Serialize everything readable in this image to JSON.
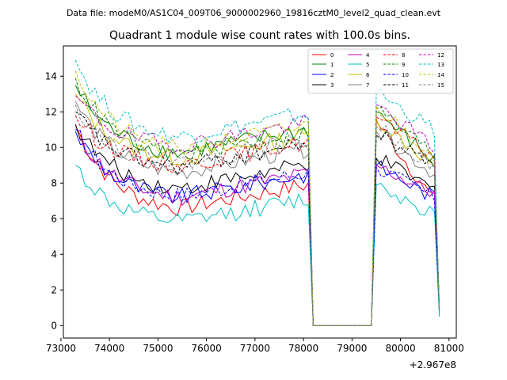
{
  "header": {
    "data_file_label": "Data file: modeM0/AS1C04_009T06_9000002960_19816cztM0_level2_quad_clean.evt"
  },
  "chart_data": {
    "type": "line",
    "title": "Quadrant 1 module wise count rates with 100.0s bins.",
    "xlabel": "",
    "ylabel": "",
    "x_offset_label": "+2.967e8",
    "xlim": [
      73050,
      81150
    ],
    "ylim": [
      -0.7,
      15.7
    ],
    "x_ticks": [
      73000,
      74000,
      75000,
      76000,
      77000,
      78000,
      79000,
      80000,
      81000
    ],
    "x_tick_labels": [
      "73000",
      "74000",
      "75000",
      "76000",
      "77000",
      "78000",
      "79000",
      "80000",
      "81000"
    ],
    "y_ticks": [
      0,
      2,
      4,
      6,
      8,
      10,
      12,
      14
    ],
    "y_tick_labels": [
      "0",
      "2",
      "4",
      "6",
      "8",
      "10",
      "12",
      "14"
    ],
    "legend_position": "top-right",
    "bin_seconds": 100,
    "segment_1": {
      "x_start": 73300,
      "x_end": 78100,
      "step": 100
    },
    "gap": {
      "x_start": 78200,
      "x_end": 79400,
      "value": 0
    },
    "segment_2": {
      "x_start": 79500,
      "x_end": 80700,
      "step": 100
    },
    "end_point": {
      "x": 80800
    },
    "series": [
      {
        "name": "0",
        "color": "#ff0000",
        "dash": "solid",
        "start": 11.2,
        "plateau": 6.6,
        "peak": 11.5,
        "s2_end": 7.0,
        "end_value": 0.9
      },
      {
        "name": "1",
        "color": "#008000",
        "dash": "solid",
        "start": 13.5,
        "plateau": 9.7,
        "peak": 12.0,
        "s2_end": 9.2,
        "end_value": 0.9
      },
      {
        "name": "2",
        "color": "#0000ff",
        "dash": "solid",
        "start": 10.9,
        "plateau": 7.2,
        "peak": 9.0,
        "s2_end": 7.2,
        "end_value": 0.8
      },
      {
        "name": "3",
        "color": "#000000",
        "dash": "solid",
        "start": 11.3,
        "plateau": 7.7,
        "peak": 9.4,
        "s2_end": 7.6,
        "end_value": 0.8
      },
      {
        "name": "4",
        "color": "#c000c0",
        "dash": "solid",
        "start": 11.0,
        "plateau": 7.2,
        "peak": 9.0,
        "s2_end": 7.4,
        "end_value": 0.8
      },
      {
        "name": "5",
        "color": "#00c0c0",
        "dash": "solid",
        "start": 9.0,
        "plateau": 5.8,
        "peak": 7.9,
        "s2_end": 6.3,
        "end_value": 0.6
      },
      {
        "name": "6",
        "color": "#c0c000",
        "dash": "solid",
        "start": 13.0,
        "plateau": 9.4,
        "peak": 11.6,
        "s2_end": 9.0,
        "end_value": 0.9
      },
      {
        "name": "7",
        "color": "#808080",
        "dash": "solid",
        "start": 12.6,
        "plateau": 8.6,
        "peak": 10.9,
        "s2_end": 8.5,
        "end_value": 0.9
      },
      {
        "name": "8",
        "color": "#ff0000",
        "dash": "dashed",
        "start": 11.8,
        "plateau": 9.0,
        "peak": 11.7,
        "s2_end": 9.4,
        "end_value": 0.9
      },
      {
        "name": "9",
        "color": "#008000",
        "dash": "dashed",
        "start": 13.9,
        "plateau": 9.6,
        "peak": 12.2,
        "s2_end": 9.6,
        "end_value": 1.0
      },
      {
        "name": "10",
        "color": "#0000ff",
        "dash": "dashed",
        "start": 11.0,
        "plateau": 7.3,
        "peak": 8.9,
        "s2_end": 7.2,
        "end_value": 0.8
      },
      {
        "name": "11",
        "color": "#000000",
        "dash": "dashed",
        "start": 12.0,
        "plateau": 8.9,
        "peak": 10.7,
        "s2_end": 9.1,
        "end_value": 0.9
      },
      {
        "name": "12",
        "color": "#c000c0",
        "dash": "dashed",
        "start": 12.9,
        "plateau": 10.1,
        "peak": 12.4,
        "s2_end": 10.0,
        "end_value": 1.0
      },
      {
        "name": "13",
        "color": "#00c0c0",
        "dash": "dashed",
        "start": 14.9,
        "plateau": 10.6,
        "peak": 13.1,
        "s2_end": 11.0,
        "end_value": 0.5
      },
      {
        "name": "14",
        "color": "#c0c000",
        "dash": "dashed",
        "start": 14.3,
        "plateau": 9.9,
        "peak": 12.3,
        "s2_end": 9.6,
        "end_value": 1.0
      },
      {
        "name": "15",
        "color": "#808080",
        "dash": "dashed",
        "start": 12.4,
        "plateau": 9.1,
        "peak": 11.2,
        "s2_end": 8.9,
        "end_value": 0.9
      }
    ]
  }
}
